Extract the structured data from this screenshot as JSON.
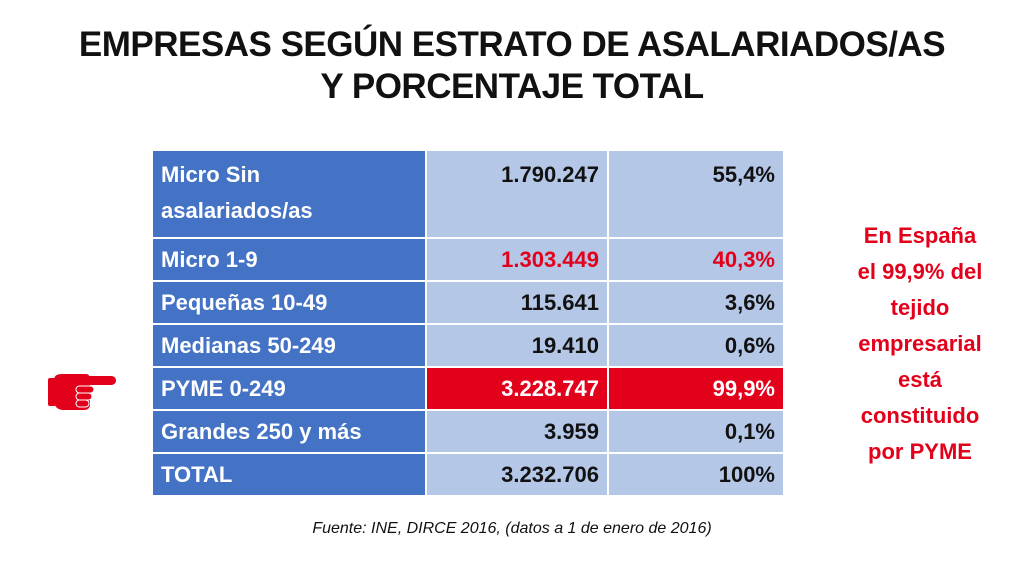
{
  "title": {
    "line1": "EMPRESAS SEGÚN ESTRATO DE ASALARIADOS/AS",
    "line2": "Y PORCENTAJE TOTAL"
  },
  "table": {
    "rows": [
      {
        "label": "Micro Sin asalariados/as",
        "count": "1.790.247",
        "percent": "55,4%"
      },
      {
        "label": "Micro  1-9",
        "count": "1.303.449",
        "percent": "40,3%"
      },
      {
        "label": "Pequeñas 10-49",
        "count": "115.641",
        "percent": "3,6%"
      },
      {
        "label": "Medianas   50-249",
        "count": "19.410",
        "percent": "0,6%"
      },
      {
        "label": "PYME 0-249",
        "count": "3.228.747",
        "percent": "99,9%"
      },
      {
        "label": "Grandes  250 y más",
        "count": "3.959",
        "percent": "0,1%"
      },
      {
        "label": "TOTAL",
        "count": "3.232.706",
        "percent": "100%"
      }
    ]
  },
  "note": {
    "lines": [
      "En España",
      "el 99,9% del",
      "tejido",
      "empresarial",
      "está",
      "constituido",
      "por PYME"
    ]
  },
  "source": "Fuente: INE, DIRCE 2016, (datos a 1 de enero de 2016)",
  "colors": {
    "header_blue": "#4472c4",
    "cell_light_blue": "#b4c7e7",
    "accent_red": "#e3001b"
  },
  "icons": {
    "pointer": "pointing-hand-icon"
  }
}
